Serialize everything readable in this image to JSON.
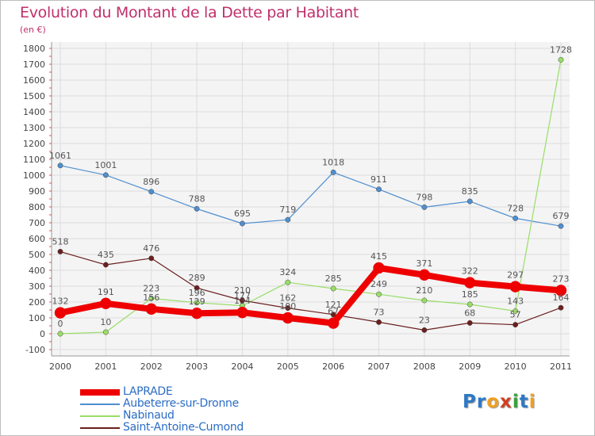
{
  "title": "Evolution du Montant de la Dette par Habitant",
  "unit": "(en €)",
  "logo": {
    "text": "Proxiti",
    "letters": [
      "P",
      "r",
      "o",
      "x",
      "i",
      "t",
      "i"
    ],
    "colors": [
      "#2e79c4",
      "#2e79c4",
      "#f0a020",
      "#d04020",
      "#3aa03a",
      "#2e79c4",
      "#f0a020"
    ]
  },
  "chart_data": {
    "type": "line",
    "x": [
      "2000",
      "2001",
      "2002",
      "2003",
      "2004",
      "2005",
      "2006",
      "2007",
      "2008",
      "2009",
      "2010",
      "2011"
    ],
    "ylim": [
      -100,
      1800
    ],
    "yticks": [
      -100,
      0,
      100,
      200,
      300,
      400,
      500,
      600,
      700,
      800,
      900,
      1000,
      1100,
      1200,
      1300,
      1400,
      1500,
      1600,
      1700,
      1800
    ],
    "grid": true,
    "legend_position": "bottom-left",
    "series": [
      {
        "name": "LAPRADE",
        "color": "#ee0000",
        "values": [
          132,
          191,
          156,
          129,
          134,
          100,
          67,
          415,
          371,
          322,
          297,
          273
        ],
        "labels": [
          "132",
          "191",
          "156",
          "129",
          "134",
          "100",
          "67",
          "415",
          "371",
          "322",
          "297",
          "273"
        ]
      },
      {
        "name": "Aubeterre-sur-Dronne",
        "color": "#4f8fcf",
        "values": [
          1061,
          1001,
          896,
          788,
          695,
          719,
          1018,
          911,
          798,
          835,
          728,
          679
        ],
        "labels": [
          "1061",
          "1001",
          "896",
          "788",
          "695",
          "719",
          "1018",
          "911",
          "798",
          "835",
          "728",
          "679"
        ]
      },
      {
        "name": "Nabinaud",
        "color": "#99dd66",
        "values": [
          0,
          10,
          223,
          196,
          177,
          324,
          285,
          249,
          210,
          185,
          143,
          1728
        ],
        "labels": [
          "0",
          "10",
          "223",
          "196",
          "177",
          "324",
          "285",
          "249",
          "210",
          "185",
          "143",
          "1728"
        ]
      },
      {
        "name": "Saint-Antoine-Cumond",
        "color": "#6b1f1f",
        "values": [
          518,
          435,
          476,
          289,
          210,
          162,
          121,
          73,
          23,
          68,
          57,
          164
        ],
        "labels": [
          "518",
          "435",
          "476",
          "289",
          "210",
          "162",
          "121",
          "73",
          "23",
          "68",
          "57",
          "164"
        ]
      }
    ]
  }
}
